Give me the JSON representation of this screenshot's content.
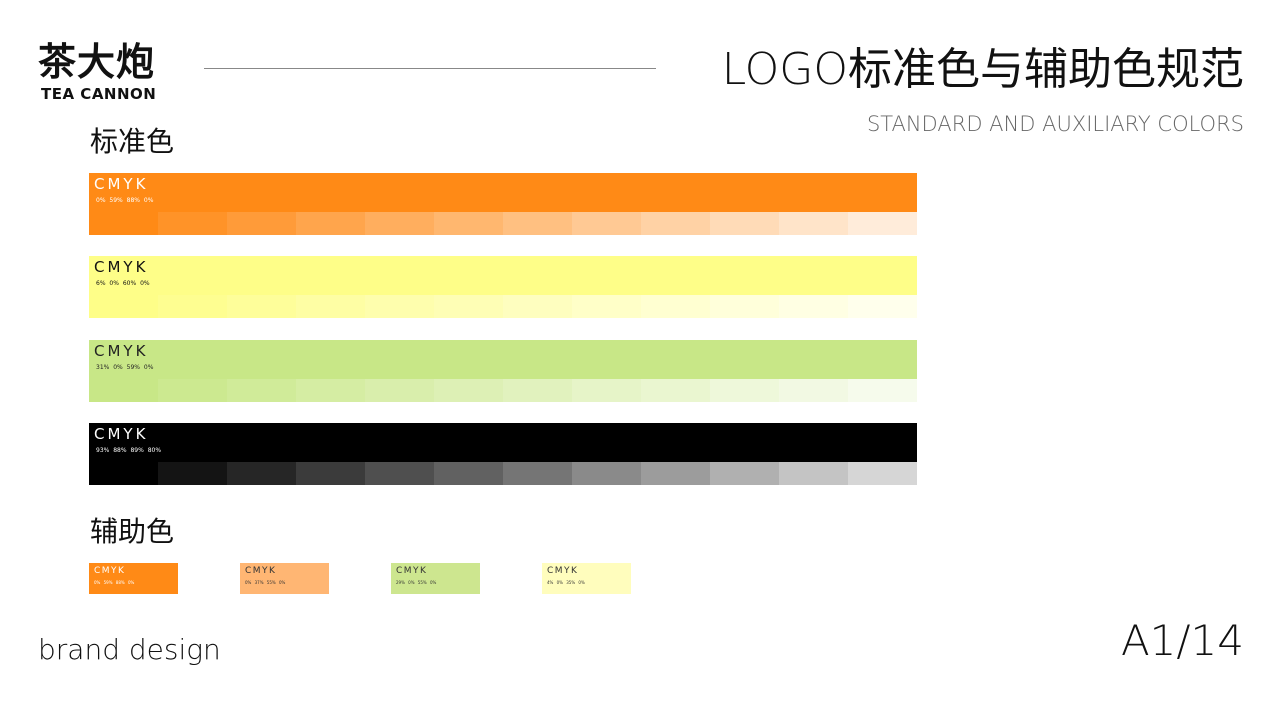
{
  "logo": {
    "cn": "茶大炮",
    "en": "TEA CANNON"
  },
  "header": {
    "title": "LOGO标准色与辅助色规范",
    "subtitle": "STANDARD AND AUXILIARY COLORS"
  },
  "standard": {
    "label": "标准色",
    "bars": [
      {
        "cmyk_label": "CMYK",
        "values": "0% 59% 88% 0%",
        "color": "#ff8a16",
        "text": "#ffffff"
      },
      {
        "cmyk_label": "CMYK",
        "values": "6% 0% 60% 0%",
        "color": "#fefe88",
        "text": "#111111"
      },
      {
        "cmyk_label": "CMYK",
        "values": "31% 0% 59% 0%",
        "color": "#c8e787",
        "text": "#222222"
      },
      {
        "cmyk_label": "CMYK",
        "values": "93% 88% 89% 80%",
        "color": "#000000",
        "text": "#ffffff"
      }
    ]
  },
  "auxiliary": {
    "label": "辅助色",
    "swatches": [
      {
        "cmyk_label": "CMYK",
        "values": "0% 59% 88% 0%",
        "color": "#ff8a16",
        "text": "#ffffff"
      },
      {
        "cmyk_label": "CMYK",
        "values": "0% 37% 55% 0%",
        "color": "#ffb673",
        "text": "#333333"
      },
      {
        "cmyk_label": "CMYK",
        "values": "29% 0% 55% 0%",
        "color": "#cde68f",
        "text": "#333333"
      },
      {
        "cmyk_label": "CMYK",
        "values": "4% 0% 35% 0%",
        "color": "#fffdbd",
        "text": "#333333"
      }
    ]
  },
  "footer": {
    "text": "brand design",
    "page": "A1/14"
  }
}
